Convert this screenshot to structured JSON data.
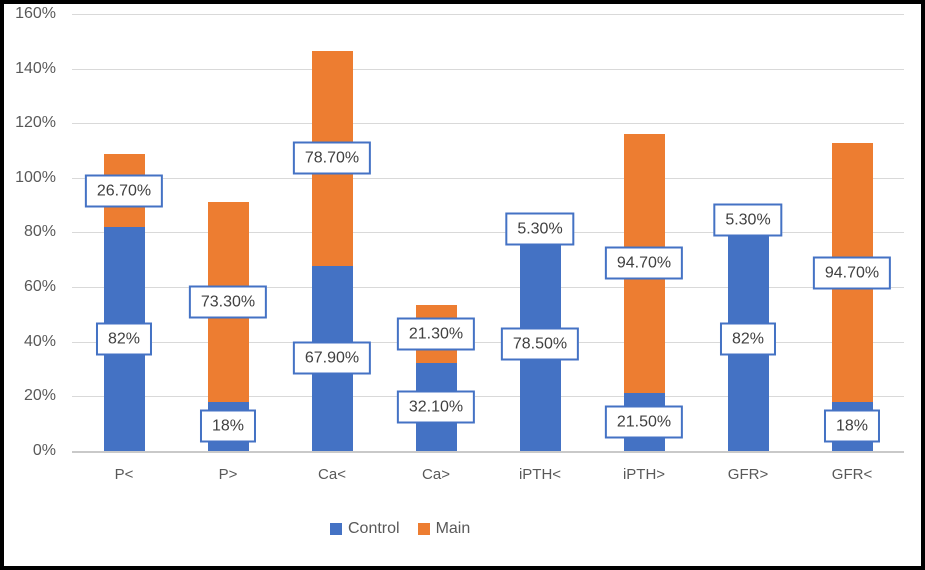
{
  "chart_data": {
    "type": "bar",
    "stacked": true,
    "title": "",
    "categories": [
      "P<",
      "P>",
      "Ca<",
      "Ca>",
      "iPTH<",
      "iPTH>",
      "GFR>",
      "GFR<"
    ],
    "series": [
      {
        "name": "Control",
        "color": "#4472C4",
        "values": [
          82,
          18,
          67.9,
          32.1,
          78.5,
          21.5,
          82,
          18
        ],
        "labels": [
          "82%",
          "18%",
          "67.90%",
          "32.10%",
          "78.50%",
          "21.50%",
          "82%",
          "18%"
        ]
      },
      {
        "name": "Main",
        "color": "#ED7D31",
        "values": [
          26.7,
          73.3,
          78.7,
          21.3,
          5.3,
          94.7,
          5.3,
          94.7
        ],
        "labels": [
          "26.70%",
          "73.30%",
          "78.70%",
          "21.30%",
          "5.30%",
          "94.70%",
          "5.30%",
          "94.70%"
        ]
      }
    ],
    "y_axis": {
      "min": 0,
      "max": 160,
      "step": 20,
      "tick_labels": [
        "0%",
        "20%",
        "40%",
        "60%",
        "80%",
        "100%",
        "120%",
        "140%",
        "160%"
      ]
    },
    "xlabel": "",
    "ylabel": "",
    "grid": true,
    "legend_position": "bottom",
    "data_labels_boxed": true
  },
  "colors": {
    "control_blue": "#4472C4",
    "main_orange": "#ED7D31",
    "gridline": "#D9D9D9",
    "axis_text": "#595959",
    "data_label_text": "#404040",
    "data_label_border": "#4472C4",
    "background": "#FFFFFF",
    "frame": "#000000"
  }
}
